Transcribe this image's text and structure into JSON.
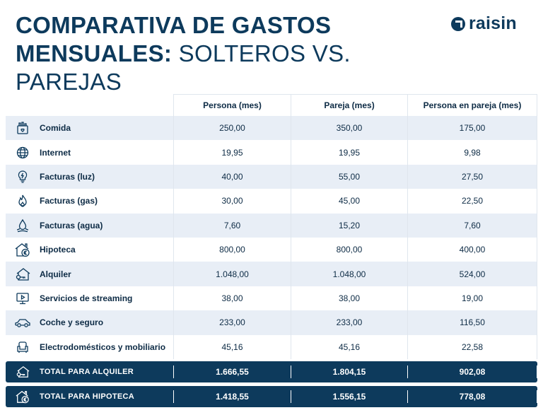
{
  "title": {
    "line1": "COMPARATIVA DE GASTOS",
    "line2_bold": "MENSUALES:",
    "line2_light": "SOLTEROS VS. PAREJAS"
  },
  "logo": {
    "text": "raisin",
    "icon": "raisin-logo-icon"
  },
  "columns": [
    "Persona (mes)",
    "Pareja (mes)",
    "Persona en pareja (mes)"
  ],
  "rows": [
    {
      "icon": "grocery-icon",
      "label": "Comida",
      "values": [
        "250,00",
        "350,00",
        "175,00"
      ]
    },
    {
      "icon": "globe-icon",
      "label": "Internet",
      "values": [
        "19,95",
        "19,95",
        "9,98"
      ]
    },
    {
      "icon": "lightbulb-icon",
      "label": "Facturas (luz)",
      "values": [
        "40,00",
        "55,00",
        "27,50"
      ]
    },
    {
      "icon": "flame-icon",
      "label": "Facturas (gas)",
      "values": [
        "30,00",
        "45,00",
        "22,50"
      ]
    },
    {
      "icon": "water-drop-icon",
      "label": "Facturas (agua)",
      "values": [
        "7,60",
        "15,20",
        "7,60"
      ]
    },
    {
      "icon": "house-euro-icon",
      "label": "Hipoteca",
      "values": [
        "800,00",
        "800,00",
        "400,00"
      ]
    },
    {
      "icon": "house-key-icon",
      "label": "Alquiler",
      "values": [
        "1.048,00",
        "1.048,00",
        "524,00"
      ]
    },
    {
      "icon": "tv-play-icon",
      "label": "Servicios de streaming",
      "values": [
        "38,00",
        "38,00",
        "19,00"
      ]
    },
    {
      "icon": "car-icon",
      "label": "Coche y seguro",
      "values": [
        "233,00",
        "233,00",
        "116,50"
      ]
    },
    {
      "icon": "armchair-icon",
      "label": "Electrodomésticos y mobiliario",
      "values": [
        "45,16",
        "45,16",
        "22,58"
      ]
    }
  ],
  "totals": [
    {
      "icon": "house-key-icon",
      "label": "TOTAL PARA ALQUILER",
      "values": [
        "1.666,55",
        "1.804,15",
        "902,08"
      ]
    },
    {
      "icon": "house-euro-icon",
      "label": "TOTAL PARA HIPOTECA",
      "values": [
        "1.418,55",
        "1.556,15",
        "778,08"
      ]
    }
  ],
  "colors": {
    "navy": "#0d3a5c",
    "row_alt": "#e8eef6",
    "border": "#dfe6ee"
  }
}
